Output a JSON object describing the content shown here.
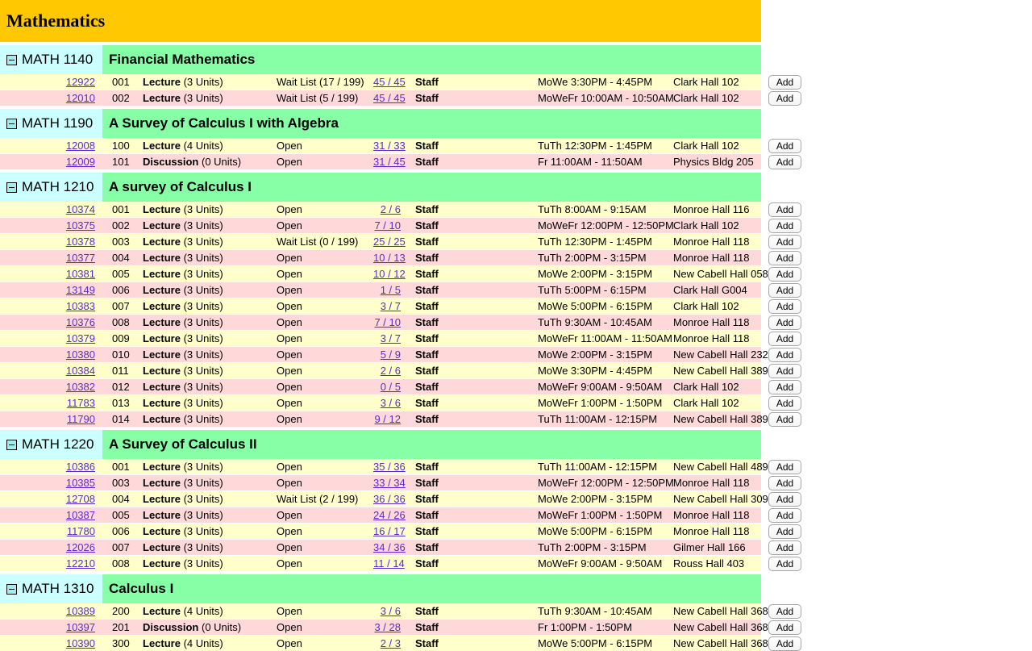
{
  "page": {
    "department_title": "Mathematics"
  },
  "buttons": {
    "add_label": "Add"
  },
  "icons": {
    "section_collapse": "minus-box-icon"
  },
  "colors": {
    "dept_header_bg": "#FFC800",
    "section_code_bg": "#CCFFFF",
    "section_title_bg": "#87FFA6",
    "row_odd_bg": "#FFFFCC",
    "row_even_bg": "#FFD9DA",
    "link_color": "#5A2CC8"
  },
  "sections": [
    {
      "code": "MATH 1140",
      "title": "Financial Mathematics",
      "rows": [
        {
          "nbr": "12922",
          "sec": "001",
          "type": "Lecture",
          "units": "(3 Units)",
          "status": "Wait List (17 / 199)",
          "enroll": "45 / 45",
          "instructor": "Staff",
          "time": "MoWe 3:30PM - 4:45PM",
          "room": "Clark Hall 102"
        },
        {
          "nbr": "12010",
          "sec": "002",
          "type": "Lecture",
          "units": "(3 Units)",
          "status": "Wait List (5 / 199)",
          "enroll": "45 / 45",
          "instructor": "Staff",
          "time": "MoWeFr 10:00AM - 10:50AM",
          "room": "Clark Hall 102"
        }
      ]
    },
    {
      "code": "MATH 1190",
      "title": "A Survey of Calculus I with Algebra",
      "rows": [
        {
          "nbr": "12008",
          "sec": "100",
          "type": "Lecture",
          "units": "(4 Units)",
          "status": "Open",
          "enroll": "31 / 33",
          "instructor": "Staff",
          "time": "TuTh 12:30PM - 1:45PM",
          "room": "Clark Hall 102"
        },
        {
          "nbr": "12009",
          "sec": "101",
          "type": "Discussion",
          "units": "(0 Units)",
          "status": "Open",
          "enroll": "31 / 45",
          "instructor": "Staff",
          "time": "Fr 11:00AM - 11:50AM",
          "room": "Physics Bldg 205"
        }
      ]
    },
    {
      "code": "MATH 1210",
      "title": "A survey of Calculus I",
      "rows": [
        {
          "nbr": "10374",
          "sec": "001",
          "type": "Lecture",
          "units": "(3 Units)",
          "status": "Open",
          "enroll": "2 / 6",
          "instructor": "Staff",
          "time": "TuTh 8:00AM - 9:15AM",
          "room": "Monroe Hall 116"
        },
        {
          "nbr": "10375",
          "sec": "002",
          "type": "Lecture",
          "units": "(3 Units)",
          "status": "Open",
          "enroll": "7 / 10",
          "instructor": "Staff",
          "time": "MoWeFr 12:00PM - 12:50PM",
          "room": "Clark Hall 102"
        },
        {
          "nbr": "10378",
          "sec": "003",
          "type": "Lecture",
          "units": "(3 Units)",
          "status": "Wait List (0 / 199)",
          "enroll": "25 / 25",
          "instructor": "Staff",
          "time": "TuTh 12:30PM - 1:45PM",
          "room": "Monroe Hall 118"
        },
        {
          "nbr": "10377",
          "sec": "004",
          "type": "Lecture",
          "units": "(3 Units)",
          "status": "Open",
          "enroll": "10 / 13",
          "instructor": "Staff",
          "time": "TuTh 2:00PM - 3:15PM",
          "room": "Monroe Hall 118"
        },
        {
          "nbr": "10381",
          "sec": "005",
          "type": "Lecture",
          "units": "(3 Units)",
          "status": "Open",
          "enroll": "10 / 12",
          "instructor": "Staff",
          "time": "MoWe 2:00PM - 3:15PM",
          "room": "New Cabell Hall 058"
        },
        {
          "nbr": "13149",
          "sec": "006",
          "type": "Lecture",
          "units": "(3 Units)",
          "status": "Open",
          "enroll": "1 / 5",
          "instructor": "Staff",
          "time": "TuTh 5:00PM - 6:15PM",
          "room": "Clark Hall G004"
        },
        {
          "nbr": "10383",
          "sec": "007",
          "type": "Lecture",
          "units": "(3 Units)",
          "status": "Open",
          "enroll": "3 / 7",
          "instructor": "Staff",
          "time": "MoWe 5:00PM - 6:15PM",
          "room": "Clark Hall 102"
        },
        {
          "nbr": "10376",
          "sec": "008",
          "type": "Lecture",
          "units": "(3 Units)",
          "status": "Open",
          "enroll": "7 / 10",
          "instructor": "Staff",
          "time": "TuTh 9:30AM - 10:45AM",
          "room": "Monroe Hall 118"
        },
        {
          "nbr": "10379",
          "sec": "009",
          "type": "Lecture",
          "units": "(3 Units)",
          "status": "Open",
          "enroll": "3 / 7",
          "instructor": "Staff",
          "time": "MoWeFr 11:00AM - 11:50AM",
          "room": "Monroe Hall 118"
        },
        {
          "nbr": "10380",
          "sec": "010",
          "type": "Lecture",
          "units": "(3 Units)",
          "status": "Open",
          "enroll": "5 / 9",
          "instructor": "Staff",
          "time": "MoWe 2:00PM - 3:15PM",
          "room": "New Cabell Hall 232"
        },
        {
          "nbr": "10384",
          "sec": "011",
          "type": "Lecture",
          "units": "(3 Units)",
          "status": "Open",
          "enroll": "2 / 6",
          "instructor": "Staff",
          "time": "MoWe 3:30PM - 4:45PM",
          "room": "New Cabell Hall 389"
        },
        {
          "nbr": "10382",
          "sec": "012",
          "type": "Lecture",
          "units": "(3 Units)",
          "status": "Open",
          "enroll": "0 / 5",
          "instructor": "Staff",
          "time": "MoWeFr 9:00AM - 9:50AM",
          "room": "Clark Hall 102"
        },
        {
          "nbr": "11783",
          "sec": "013",
          "type": "Lecture",
          "units": "(3 Units)",
          "status": "Open",
          "enroll": "3 / 6",
          "instructor": "Staff",
          "time": "MoWeFr 1:00PM - 1:50PM",
          "room": "Clark Hall 102"
        },
        {
          "nbr": "11790",
          "sec": "014",
          "type": "Lecture",
          "units": "(3 Units)",
          "status": "Open",
          "enroll": "9 / 12",
          "instructor": "Staff",
          "time": "TuTh 11:00AM - 12:15PM",
          "room": "New Cabell Hall 389"
        }
      ]
    },
    {
      "code": "MATH 1220",
      "title": "A Survey of Calculus II",
      "rows": [
        {
          "nbr": "10386",
          "sec": "001",
          "type": "Lecture",
          "units": "(3 Units)",
          "status": "Open",
          "enroll": "35 / 36",
          "instructor": "Staff",
          "time": "TuTh 11:00AM - 12:15PM",
          "room": "New Cabell Hall 489"
        },
        {
          "nbr": "10385",
          "sec": "003",
          "type": "Lecture",
          "units": "(3 Units)",
          "status": "Open",
          "enroll": "33 / 34",
          "instructor": "Staff",
          "time": "MoWeFr 12:00PM - 12:50PM",
          "room": "Monroe Hall 118"
        },
        {
          "nbr": "12708",
          "sec": "004",
          "type": "Lecture",
          "units": "(3 Units)",
          "status": "Wait List (2 / 199)",
          "enroll": "36 / 36",
          "instructor": "Staff",
          "time": "MoWe 2:00PM - 3:15PM",
          "room": "New Cabell Hall 309"
        },
        {
          "nbr": "10387",
          "sec": "005",
          "type": "Lecture",
          "units": "(3 Units)",
          "status": "Open",
          "enroll": "24 / 26",
          "instructor": "Staff",
          "time": "MoWeFr 1:00PM - 1:50PM",
          "room": "Monroe Hall 118"
        },
        {
          "nbr": "11780",
          "sec": "006",
          "type": "Lecture",
          "units": "(3 Units)",
          "status": "Open",
          "enroll": "16 / 17",
          "instructor": "Staff",
          "time": "MoWe 5:00PM - 6:15PM",
          "room": "Monroe Hall 118"
        },
        {
          "nbr": "12026",
          "sec": "007",
          "type": "Lecture",
          "units": "(3 Units)",
          "status": "Open",
          "enroll": "34 / 36",
          "instructor": "Staff",
          "time": "TuTh 2:00PM - 3:15PM",
          "room": "Gilmer Hall 166"
        },
        {
          "nbr": "12210",
          "sec": "008",
          "type": "Lecture",
          "units": "(3 Units)",
          "status": "Open",
          "enroll": "11 / 14",
          "instructor": "Staff",
          "time": "MoWeFr 9:00AM - 9:50AM",
          "room": "Rouss Hall 403"
        }
      ]
    },
    {
      "code": "MATH 1310",
      "title": "Calculus I",
      "rows": [
        {
          "nbr": "10389",
          "sec": "200",
          "type": "Lecture",
          "units": "(4 Units)",
          "status": "Open",
          "enroll": "3 / 6",
          "instructor": "Staff",
          "time": "TuTh 9:30AM - 10:45AM",
          "room": "New Cabell Hall 368"
        },
        {
          "nbr": "10397",
          "sec": "201",
          "type": "Discussion",
          "units": "(0 Units)",
          "status": "Open",
          "enroll": "3 / 28",
          "instructor": "Staff",
          "time": "Fr 1:00PM - 1:50PM",
          "room": "New Cabell Hall 368"
        },
        {
          "nbr": "10390",
          "sec": "300",
          "type": "Lecture",
          "units": "(4 Units)",
          "status": "Open",
          "enroll": "2 / 3",
          "instructor": "Staff",
          "time": "MoWe 5:00PM - 6:15PM",
          "room": "New Cabell Hall 368"
        }
      ]
    }
  ]
}
